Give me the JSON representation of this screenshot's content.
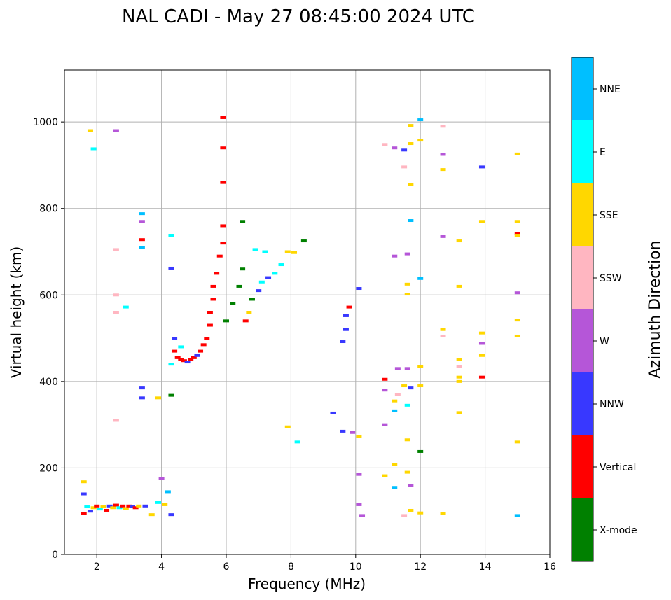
{
  "chart_data": {
    "type": "scatter",
    "title": "NAL CADI - May 27 08:45:00 2024 UTC",
    "xlabel": "Frequency (MHz)",
    "ylabel": "Virtual height (km)",
    "xlim": [
      1,
      16
    ],
    "ylim": [
      0,
      1120
    ],
    "xticks": [
      2,
      4,
      6,
      8,
      10,
      12,
      14,
      16
    ],
    "yticks": [
      0,
      200,
      400,
      600,
      800,
      1000
    ],
    "grid": true,
    "colorbar": {
      "title": "Azimuth Direction",
      "categories": [
        {
          "label": "X-mode",
          "color": "#008000"
        },
        {
          "label": "Vertical",
          "color": "#ff0000"
        },
        {
          "label": "NNW",
          "color": "#3838ff"
        },
        {
          "label": "W",
          "color": "#b556d8"
        },
        {
          "label": "SSW",
          "color": "#ffb6c1"
        },
        {
          "label": "SSE",
          "color": "#ffd700"
        },
        {
          "label": "E",
          "color": "#00ffff"
        },
        {
          "label": "NNE",
          "color": "#00bfff"
        }
      ]
    },
    "points": [
      {
        "f": 1.6,
        "h": 95,
        "c": "Vertical"
      },
      {
        "f": 1.6,
        "h": 140,
        "c": "NNW"
      },
      {
        "f": 1.6,
        "h": 168,
        "c": "SSE"
      },
      {
        "f": 1.7,
        "h": 110,
        "c": "E"
      },
      {
        "f": 1.8,
        "h": 100,
        "c": "NNW"
      },
      {
        "f": 1.9,
        "h": 108,
        "c": "SSE"
      },
      {
        "f": 2.0,
        "h": 112,
        "c": "Vertical"
      },
      {
        "f": 2.1,
        "h": 105,
        "c": "E"
      },
      {
        "f": 2.2,
        "h": 110,
        "c": "SSE"
      },
      {
        "f": 2.3,
        "h": 102,
        "c": "Vertical"
      },
      {
        "f": 2.4,
        "h": 112,
        "c": "NNW"
      },
      {
        "f": 2.5,
        "h": 108,
        "c": "SSE"
      },
      {
        "f": 2.6,
        "h": 114,
        "c": "Vertical"
      },
      {
        "f": 2.7,
        "h": 108,
        "c": "E"
      },
      {
        "f": 2.8,
        "h": 112,
        "c": "Vertical"
      },
      {
        "f": 2.9,
        "h": 106,
        "c": "SSE"
      },
      {
        "f": 3.0,
        "h": 112,
        "c": "Vertical"
      },
      {
        "f": 3.1,
        "h": 110,
        "c": "NNW"
      },
      {
        "f": 3.2,
        "h": 108,
        "c": "Vertical"
      },
      {
        "f": 3.3,
        "h": 112,
        "c": "SSE"
      },
      {
        "f": 3.5,
        "h": 112,
        "c": "NNW"
      },
      {
        "f": 3.7,
        "h": 92,
        "c": "SSE"
      },
      {
        "f": 3.9,
        "h": 120,
        "c": "E"
      },
      {
        "f": 4.0,
        "h": 175,
        "c": "W"
      },
      {
        "f": 4.1,
        "h": 115,
        "c": "SSE"
      },
      {
        "f": 4.2,
        "h": 145,
        "c": "NNE"
      },
      {
        "f": 4.3,
        "h": 92,
        "c": "NNW"
      },
      {
        "f": 1.8,
        "h": 980,
        "c": "SSE"
      },
      {
        "f": 1.9,
        "h": 938,
        "c": "E"
      },
      {
        "f": 2.6,
        "h": 980,
        "c": "W"
      },
      {
        "f": 2.6,
        "h": 705,
        "c": "SSW"
      },
      {
        "f": 2.6,
        "h": 600,
        "c": "SSW"
      },
      {
        "f": 2.6,
        "h": 560,
        "c": "SSW"
      },
      {
        "f": 2.6,
        "h": 310,
        "c": "SSW"
      },
      {
        "f": 2.9,
        "h": 572,
        "c": "E"
      },
      {
        "f": 3.4,
        "h": 788,
        "c": "NNE"
      },
      {
        "f": 3.4,
        "h": 770,
        "c": "W"
      },
      {
        "f": 3.4,
        "h": 728,
        "c": "Vertical"
      },
      {
        "f": 3.4,
        "h": 710,
        "c": "NNE"
      },
      {
        "f": 3.4,
        "h": 385,
        "c": "NNW"
      },
      {
        "f": 3.4,
        "h": 362,
        "c": "NNW"
      },
      {
        "f": 3.9,
        "h": 362,
        "c": "SSE"
      },
      {
        "f": 4.3,
        "h": 738,
        "c": "E"
      },
      {
        "f": 4.3,
        "h": 662,
        "c": "NNW"
      },
      {
        "f": 4.3,
        "h": 440,
        "c": "E"
      },
      {
        "f": 4.3,
        "h": 368,
        "c": "X-mode"
      },
      {
        "f": 4.4,
        "h": 470,
        "c": "Vertical"
      },
      {
        "f": 4.5,
        "h": 455,
        "c": "Vertical"
      },
      {
        "f": 4.6,
        "h": 450,
        "c": "Vertical"
      },
      {
        "f": 4.7,
        "h": 448,
        "c": "Vertical"
      },
      {
        "f": 4.8,
        "h": 445,
        "c": "NNW"
      },
      {
        "f": 4.9,
        "h": 450,
        "c": "Vertical"
      },
      {
        "f": 5.0,
        "h": 455,
        "c": "Vertical"
      },
      {
        "f": 5.1,
        "h": 460,
        "c": "NNW"
      },
      {
        "f": 5.2,
        "h": 470,
        "c": "Vertical"
      },
      {
        "f": 5.3,
        "h": 485,
        "c": "Vertical"
      },
      {
        "f": 5.4,
        "h": 500,
        "c": "Vertical"
      },
      {
        "f": 5.5,
        "h": 530,
        "c": "Vertical"
      },
      {
        "f": 5.5,
        "h": 560,
        "c": "Vertical"
      },
      {
        "f": 5.6,
        "h": 590,
        "c": "Vertical"
      },
      {
        "f": 5.6,
        "h": 620,
        "c": "Vertical"
      },
      {
        "f": 5.7,
        "h": 650,
        "c": "Vertical"
      },
      {
        "f": 5.8,
        "h": 690,
        "c": "Vertical"
      },
      {
        "f": 5.9,
        "h": 720,
        "c": "Vertical"
      },
      {
        "f": 5.9,
        "h": 760,
        "c": "Vertical"
      },
      {
        "f": 5.9,
        "h": 860,
        "c": "Vertical"
      },
      {
        "f": 5.9,
        "h": 940,
        "c": "Vertical"
      },
      {
        "f": 5.9,
        "h": 1010,
        "c": "Vertical"
      },
      {
        "f": 4.4,
        "h": 500,
        "c": "NNW"
      },
      {
        "f": 4.6,
        "h": 480,
        "c": "E"
      },
      {
        "f": 6.0,
        "h": 540,
        "c": "X-mode"
      },
      {
        "f": 6.2,
        "h": 580,
        "c": "X-mode"
      },
      {
        "f": 6.4,
        "h": 620,
        "c": "X-mode"
      },
      {
        "f": 6.5,
        "h": 660,
        "c": "X-mode"
      },
      {
        "f": 6.5,
        "h": 770,
        "c": "X-mode"
      },
      {
        "f": 6.6,
        "h": 540,
        "c": "Vertical"
      },
      {
        "f": 6.7,
        "h": 560,
        "c": "SSE"
      },
      {
        "f": 6.8,
        "h": 590,
        "c": "X-mode"
      },
      {
        "f": 7.0,
        "h": 610,
        "c": "NNW"
      },
      {
        "f": 7.1,
        "h": 630,
        "c": "E"
      },
      {
        "f": 7.3,
        "h": 640,
        "c": "NNW"
      },
      {
        "f": 7.5,
        "h": 650,
        "c": "E"
      },
      {
        "f": 7.7,
        "h": 670,
        "c": "E"
      },
      {
        "f": 7.9,
        "h": 700,
        "c": "SSE"
      },
      {
        "f": 8.1,
        "h": 698,
        "c": "SSE"
      },
      {
        "f": 8.4,
        "h": 725,
        "c": "X-mode"
      },
      {
        "f": 6.9,
        "h": 705,
        "c": "E"
      },
      {
        "f": 7.2,
        "h": 700,
        "c": "E"
      },
      {
        "f": 7.9,
        "h": 295,
        "c": "SSE"
      },
      {
        "f": 8.2,
        "h": 260,
        "c": "E"
      },
      {
        "f": 9.3,
        "h": 327,
        "c": "NNW"
      },
      {
        "f": 9.6,
        "h": 285,
        "c": "NNW"
      },
      {
        "f": 9.7,
        "h": 520,
        "c": "NNW"
      },
      {
        "f": 9.7,
        "h": 552,
        "c": "NNW"
      },
      {
        "f": 9.6,
        "h": 492,
        "c": "NNW"
      },
      {
        "f": 9.8,
        "h": 572,
        "c": "Vertical"
      },
      {
        "f": 10.1,
        "h": 615,
        "c": "NNW"
      },
      {
        "f": 10.1,
        "h": 185,
        "c": "W"
      },
      {
        "f": 10.1,
        "h": 115,
        "c": "W"
      },
      {
        "f": 10.2,
        "h": 90,
        "c": "W"
      },
      {
        "f": 9.9,
        "h": 282,
        "c": "W"
      },
      {
        "f": 10.1,
        "h": 272,
        "c": "SSE"
      },
      {
        "f": 10.9,
        "h": 948,
        "c": "SSW"
      },
      {
        "f": 10.9,
        "h": 405,
        "c": "Vertical"
      },
      {
        "f": 10.9,
        "h": 380,
        "c": "W"
      },
      {
        "f": 10.9,
        "h": 300,
        "c": "W"
      },
      {
        "f": 10.9,
        "h": 182,
        "c": "SSE"
      },
      {
        "f": 11.2,
        "h": 940,
        "c": "W"
      },
      {
        "f": 11.5,
        "h": 935,
        "c": "NNW"
      },
      {
        "f": 11.5,
        "h": 896,
        "c": "SSW"
      },
      {
        "f": 11.7,
        "h": 992,
        "c": "SSE"
      },
      {
        "f": 11.7,
        "h": 950,
        "c": "SSE"
      },
      {
        "f": 11.7,
        "h": 855,
        "c": "SSE"
      },
      {
        "f": 11.7,
        "h": 772,
        "c": "NNE"
      },
      {
        "f": 11.6,
        "h": 695,
        "c": "W"
      },
      {
        "f": 11.2,
        "h": 690,
        "c": "W"
      },
      {
        "f": 11.6,
        "h": 625,
        "c": "SSE"
      },
      {
        "f": 11.6,
        "h": 602,
        "c": "SSE"
      },
      {
        "f": 11.3,
        "h": 430,
        "c": "W"
      },
      {
        "f": 11.6,
        "h": 430,
        "c": "W"
      },
      {
        "f": 11.5,
        "h": 390,
        "c": "SSE"
      },
      {
        "f": 11.7,
        "h": 385,
        "c": "NNW"
      },
      {
        "f": 11.3,
        "h": 370,
        "c": "SSW"
      },
      {
        "f": 11.2,
        "h": 355,
        "c": "SSE"
      },
      {
        "f": 11.6,
        "h": 345,
        "c": "E"
      },
      {
        "f": 11.2,
        "h": 332,
        "c": "NNE"
      },
      {
        "f": 11.6,
        "h": 265,
        "c": "SSE"
      },
      {
        "f": 11.2,
        "h": 208,
        "c": "SSE"
      },
      {
        "f": 11.6,
        "h": 190,
        "c": "SSE"
      },
      {
        "f": 11.7,
        "h": 160,
        "c": "W"
      },
      {
        "f": 11.2,
        "h": 155,
        "c": "NNE"
      },
      {
        "f": 11.7,
        "h": 102,
        "c": "SSE"
      },
      {
        "f": 11.5,
        "h": 90,
        "c": "SSW"
      },
      {
        "f": 12.0,
        "h": 1005,
        "c": "NNE"
      },
      {
        "f": 12.0,
        "h": 958,
        "c": "SSE"
      },
      {
        "f": 12.0,
        "h": 638,
        "c": "NNE"
      },
      {
        "f": 12.0,
        "h": 435,
        "c": "SSE"
      },
      {
        "f": 12.0,
        "h": 390,
        "c": "SSE"
      },
      {
        "f": 12.0,
        "h": 238,
        "c": "X-mode"
      },
      {
        "f": 12.0,
        "h": 96,
        "c": "SSE"
      },
      {
        "f": 12.7,
        "h": 990,
        "c": "SSW"
      },
      {
        "f": 12.7,
        "h": 925,
        "c": "W"
      },
      {
        "f": 12.7,
        "h": 890,
        "c": "SSE"
      },
      {
        "f": 12.7,
        "h": 735,
        "c": "W"
      },
      {
        "f": 12.7,
        "h": 520,
        "c": "SSE"
      },
      {
        "f": 12.7,
        "h": 505,
        "c": "SSW"
      },
      {
        "f": 12.7,
        "h": 95,
        "c": "SSE"
      },
      {
        "f": 13.2,
        "h": 725,
        "c": "SSE"
      },
      {
        "f": 13.2,
        "h": 620,
        "c": "SSE"
      },
      {
        "f": 13.2,
        "h": 450,
        "c": "SSE"
      },
      {
        "f": 13.2,
        "h": 435,
        "c": "SSW"
      },
      {
        "f": 13.2,
        "h": 410,
        "c": "SSE"
      },
      {
        "f": 13.2,
        "h": 400,
        "c": "SSE"
      },
      {
        "f": 13.2,
        "h": 328,
        "c": "SSE"
      },
      {
        "f": 13.9,
        "h": 896,
        "c": "NNW"
      },
      {
        "f": 13.9,
        "h": 770,
        "c": "SSE"
      },
      {
        "f": 13.9,
        "h": 512,
        "c": "SSE"
      },
      {
        "f": 13.9,
        "h": 488,
        "c": "W"
      },
      {
        "f": 13.9,
        "h": 460,
        "c": "SSE"
      },
      {
        "f": 13.9,
        "h": 410,
        "c": "Vertical"
      },
      {
        "f": 15.0,
        "h": 926,
        "c": "SSE"
      },
      {
        "f": 15.0,
        "h": 770,
        "c": "SSE"
      },
      {
        "f": 15.0,
        "h": 742,
        "c": "Vertical"
      },
      {
        "f": 15.0,
        "h": 738,
        "c": "SSE"
      },
      {
        "f": 15.0,
        "h": 605,
        "c": "W"
      },
      {
        "f": 15.0,
        "h": 542,
        "c": "SSE"
      },
      {
        "f": 15.0,
        "h": 505,
        "c": "SSE"
      },
      {
        "f": 15.0,
        "h": 260,
        "c": "SSE"
      },
      {
        "f": 15.0,
        "h": 90,
        "c": "NNE"
      }
    ]
  }
}
